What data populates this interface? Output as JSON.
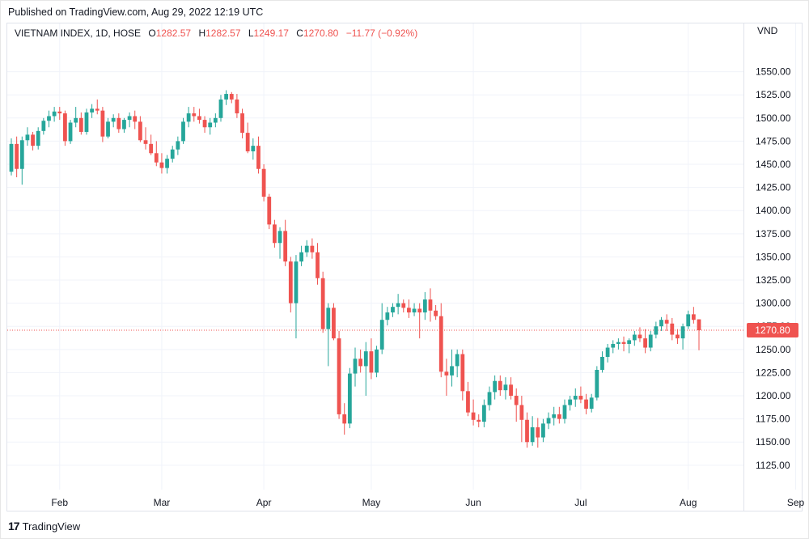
{
  "header": {
    "published": "Published on TradingView.com, Aug 29, 2022 12:19 UTC"
  },
  "legend": {
    "symbol": "VIETNAM INDEX, 1D, HOSE",
    "o_label": "O",
    "o": "1282.57",
    "h_label": "H",
    "h": "1282.57",
    "l_label": "L",
    "l": "1249.17",
    "c_label": "C",
    "c": "1270.80",
    "change": "−11.77 (−0.92%)"
  },
  "footer": {
    "brand": "TradingView",
    "logo": "17"
  },
  "chart_data": {
    "type": "candlestick",
    "unit": "VND",
    "ylim": [
      1110,
      1575
    ],
    "y_ticks": [
      "1550.00",
      "1525.00",
      "1500.00",
      "1475.00",
      "1450.00",
      "1425.00",
      "1400.00",
      "1375.00",
      "1350.00",
      "1325.00",
      "1300.00",
      "1275.00",
      "1250.00",
      "1225.00",
      "1200.00",
      "1175.00",
      "1150.00",
      "1125.00"
    ],
    "y_tick_values": [
      1550,
      1525,
      1500,
      1475,
      1450,
      1425,
      1400,
      1375,
      1350,
      1325,
      1300,
      1275,
      1250,
      1225,
      1200,
      1175,
      1150,
      1125
    ],
    "x_labels": [
      "Feb",
      "Mar",
      "Apr",
      "May",
      "Jun",
      "Jul",
      "Aug",
      "Sep"
    ],
    "x_label_bar_index": [
      9,
      28,
      47,
      67,
      86,
      106,
      126,
      146
    ],
    "last_price": "1270.80",
    "last_price_value": 1270.8,
    "up_color": "#26a69a",
    "down_color": "#ef5350",
    "candles": [
      [
        1442,
        1478,
        1438,
        1472
      ],
      [
        1472,
        1480,
        1436,
        1445
      ],
      [
        1445,
        1480,
        1428,
        1476
      ],
      [
        1476,
        1490,
        1470,
        1482
      ],
      [
        1482,
        1485,
        1465,
        1470
      ],
      [
        1470,
        1490,
        1466,
        1486
      ],
      [
        1486,
        1500,
        1482,
        1497
      ],
      [
        1497,
        1508,
        1490,
        1502
      ],
      [
        1502,
        1512,
        1496,
        1507
      ],
      [
        1507,
        1512,
        1498,
        1505
      ],
      [
        1505,
        1508,
        1470,
        1475
      ],
      [
        1475,
        1498,
        1472,
        1495
      ],
      [
        1495,
        1512,
        1490,
        1500
      ],
      [
        1500,
        1506,
        1482,
        1485
      ],
      [
        1485,
        1510,
        1482,
        1506
      ],
      [
        1506,
        1515,
        1500,
        1510
      ],
      [
        1510,
        1520,
        1504,
        1508
      ],
      [
        1508,
        1512,
        1474,
        1480
      ],
      [
        1480,
        1500,
        1478,
        1496
      ],
      [
        1496,
        1504,
        1490,
        1500
      ],
      [
        1500,
        1505,
        1484,
        1488
      ],
      [
        1488,
        1500,
        1484,
        1498
      ],
      [
        1498,
        1506,
        1490,
        1502
      ],
      [
        1502,
        1508,
        1488,
        1496
      ],
      [
        1496,
        1502,
        1474,
        1476
      ],
      [
        1476,
        1490,
        1466,
        1472
      ],
      [
        1472,
        1482,
        1460,
        1462
      ],
      [
        1462,
        1475,
        1448,
        1452
      ],
      [
        1452,
        1462,
        1440,
        1446
      ],
      [
        1446,
        1460,
        1440,
        1456
      ],
      [
        1456,
        1470,
        1452,
        1466
      ],
      [
        1466,
        1480,
        1460,
        1475
      ],
      [
        1475,
        1500,
        1472,
        1496
      ],
      [
        1496,
        1512,
        1490,
        1505
      ],
      [
        1505,
        1512,
        1496,
        1502
      ],
      [
        1502,
        1510,
        1494,
        1498
      ],
      [
        1498,
        1502,
        1484,
        1490
      ],
      [
        1490,
        1500,
        1482,
        1495
      ],
      [
        1495,
        1505,
        1490,
        1500
      ],
      [
        1500,
        1525,
        1496,
        1520
      ],
      [
        1520,
        1530,
        1514,
        1526
      ],
      [
        1526,
        1528,
        1516,
        1520
      ],
      [
        1520,
        1526,
        1500,
        1505
      ],
      [
        1505,
        1510,
        1478,
        1484
      ],
      [
        1484,
        1495,
        1462,
        1464
      ],
      [
        1464,
        1478,
        1455,
        1470
      ],
      [
        1470,
        1480,
        1440,
        1445
      ],
      [
        1445,
        1450,
        1410,
        1415
      ],
      [
        1415,
        1418,
        1380,
        1385
      ],
      [
        1385,
        1390,
        1360,
        1365
      ],
      [
        1365,
        1382,
        1348,
        1378
      ],
      [
        1378,
        1390,
        1340,
        1345
      ],
      [
        1345,
        1350,
        1290,
        1300
      ],
      [
        1300,
        1352,
        1262,
        1345
      ],
      [
        1345,
        1362,
        1340,
        1355
      ],
      [
        1355,
        1368,
        1350,
        1362
      ],
      [
        1362,
        1370,
        1348,
        1355
      ],
      [
        1355,
        1365,
        1320,
        1327
      ],
      [
        1327,
        1334,
        1268,
        1272
      ],
      [
        1272,
        1300,
        1232,
        1295
      ],
      [
        1295,
        1300,
        1260,
        1262
      ],
      [
        1262,
        1270,
        1175,
        1180
      ],
      [
        1180,
        1192,
        1158,
        1170
      ],
      [
        1170,
        1230,
        1165,
        1224
      ],
      [
        1224,
        1252,
        1210,
        1240
      ],
      [
        1240,
        1250,
        1225,
        1232
      ],
      [
        1232,
        1258,
        1200,
        1248
      ],
      [
        1248,
        1262,
        1218,
        1225
      ],
      [
        1225,
        1254,
        1220,
        1250
      ],
      [
        1250,
        1300,
        1245,
        1282
      ],
      [
        1282,
        1296,
        1276,
        1290
      ],
      [
        1290,
        1300,
        1285,
        1296
      ],
      [
        1296,
        1310,
        1288,
        1300
      ],
      [
        1300,
        1304,
        1290,
        1295
      ],
      [
        1295,
        1304,
        1284,
        1290
      ],
      [
        1290,
        1300,
        1286,
        1294
      ],
      [
        1294,
        1300,
        1262,
        1290
      ],
      [
        1290,
        1312,
        1282,
        1304
      ],
      [
        1304,
        1316,
        1280,
        1292
      ],
      [
        1292,
        1298,
        1282,
        1286
      ],
      [
        1286,
        1300,
        1220,
        1226
      ],
      [
        1226,
        1240,
        1200,
        1222
      ],
      [
        1222,
        1250,
        1210,
        1232
      ],
      [
        1232,
        1250,
        1220,
        1245
      ],
      [
        1245,
        1250,
        1195,
        1205
      ],
      [
        1205,
        1215,
        1178,
        1182
      ],
      [
        1182,
        1196,
        1168,
        1174
      ],
      [
        1174,
        1180,
        1166,
        1172
      ],
      [
        1172,
        1196,
        1166,
        1190
      ],
      [
        1190,
        1210,
        1184,
        1204
      ],
      [
        1204,
        1222,
        1196,
        1216
      ],
      [
        1216,
        1222,
        1200,
        1206
      ],
      [
        1206,
        1220,
        1196,
        1212
      ],
      [
        1212,
        1220,
        1196,
        1200
      ],
      [
        1200,
        1208,
        1172,
        1190
      ],
      [
        1190,
        1200,
        1150,
        1174
      ],
      [
        1174,
        1182,
        1144,
        1150
      ],
      [
        1150,
        1178,
        1146,
        1166
      ],
      [
        1166,
        1176,
        1144,
        1155
      ],
      [
        1155,
        1175,
        1150,
        1170
      ],
      [
        1170,
        1182,
        1164,
        1176
      ],
      [
        1176,
        1188,
        1168,
        1180
      ],
      [
        1180,
        1188,
        1170,
        1175
      ],
      [
        1175,
        1196,
        1170,
        1190
      ],
      [
        1190,
        1200,
        1184,
        1196
      ],
      [
        1196,
        1208,
        1188,
        1200
      ],
      [
        1200,
        1210,
        1192,
        1196
      ],
      [
        1196,
        1202,
        1180,
        1186
      ],
      [
        1186,
        1202,
        1182,
        1198
      ],
      [
        1198,
        1232,
        1195,
        1228
      ],
      [
        1228,
        1248,
        1225,
        1242
      ],
      [
        1242,
        1256,
        1236,
        1252
      ],
      [
        1252,
        1260,
        1246,
        1256
      ],
      [
        1256,
        1262,
        1250,
        1258
      ],
      [
        1258,
        1264,
        1248,
        1256
      ],
      [
        1256,
        1262,
        1246,
        1260
      ],
      [
        1260,
        1270,
        1254,
        1266
      ],
      [
        1266,
        1274,
        1258,
        1262
      ],
      [
        1262,
        1272,
        1246,
        1252
      ],
      [
        1252,
        1270,
        1248,
        1266
      ],
      [
        1266,
        1280,
        1262,
        1275
      ],
      [
        1275,
        1285,
        1270,
        1282
      ],
      [
        1282,
        1288,
        1270,
        1278
      ],
      [
        1278,
        1284,
        1260,
        1266
      ],
      [
        1266,
        1272,
        1256,
        1262
      ],
      [
        1262,
        1278,
        1250,
        1275
      ],
      [
        1275,
        1292,
        1272,
        1288
      ],
      [
        1288,
        1296,
        1278,
        1282
      ],
      [
        1282.57,
        1282.57,
        1249.17,
        1270.8
      ]
    ]
  }
}
